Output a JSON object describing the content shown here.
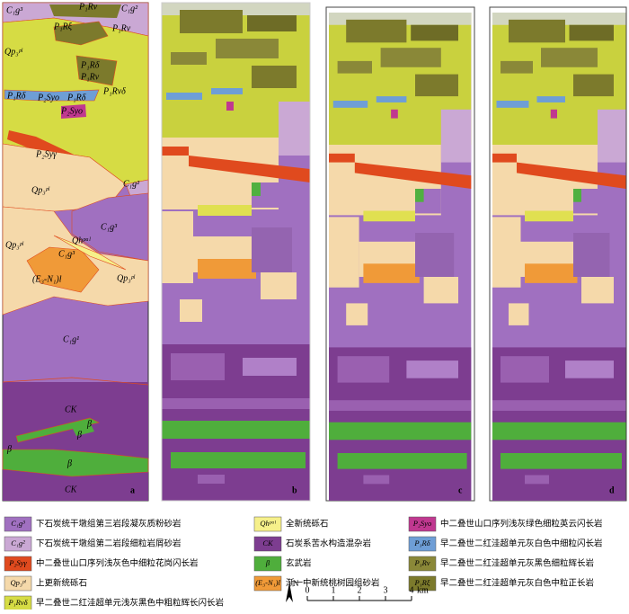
{
  "map_labels": [
    "C₁g³",
    "P₁Rv",
    "C₁g²",
    "Qp₃ᵖˡ",
    "P₁Rξ",
    "P₁Rv",
    "P₁Rδ",
    "P₁Rv",
    "P₁Rvδ",
    "P₁Rδ",
    "P₂Syo",
    "P₁Rδ",
    "P₂Syo",
    "P₂Syγ",
    "Qp₃ᵖˡ",
    "C₁g²",
    "C₁g³",
    "Qhᵖᵃˡ",
    "Qp₃ᵖˡ",
    "C₁g³",
    "(E₃-N₁)l",
    "Qp₃ᵖˡ",
    "C₁g¹",
    "CK",
    "β",
    "β",
    "β",
    "β",
    "CK"
  ],
  "panel_letters": [
    "a",
    "b",
    "c",
    "d"
  ],
  "legend": [
    {
      "code": "C₁g³",
      "text": "下石炭统干墩组第三岩段凝灰质粉砂岩"
    },
    {
      "code": "C₁g²",
      "text": "下石炭统干墩组第二岩段细粒岩屑砂岩"
    },
    {
      "code": "P₂Syγ",
      "text": "中二叠世山口序列浅灰色中细粒花岗闪长岩"
    },
    {
      "code": "Qp₃ᵖˡ",
      "text": "上更新统砾石"
    },
    {
      "code": "P₁Rvδ",
      "text": "早二叠世二红洼超单元浅灰黑色中粗粒辉长闪长岩"
    },
    {
      "code": "Qhᵖᵃˡ",
      "text": "全新统砾石"
    },
    {
      "code": "CK",
      "text": "石炭系苦水构造混杂岩"
    },
    {
      "code": "β",
      "text": "玄武岩"
    },
    {
      "code": "(E₃-N₁)l",
      "text": "渐一中新统桃树园组砂岩"
    },
    {
      "code": "P₂Syo",
      "text": "中二叠世山口序列浅灰绿色细粒英云闪长岩"
    },
    {
      "code": "P₁Rδ",
      "text": "早二叠世二红洼超单元灰白色中细粒闪长岩"
    },
    {
      "code": "P₁Rv",
      "text": "早二叠世二红洼超单元灰黑色细粒辉长岩"
    },
    {
      "code": "P₁Rξ",
      "text": "早二叠世二红洼超单元灰白色中粒正长岩"
    }
  ],
  "north": "N",
  "scale": {
    "ticks": [
      0,
      1,
      2,
      3,
      4
    ],
    "unit": "km"
  }
}
